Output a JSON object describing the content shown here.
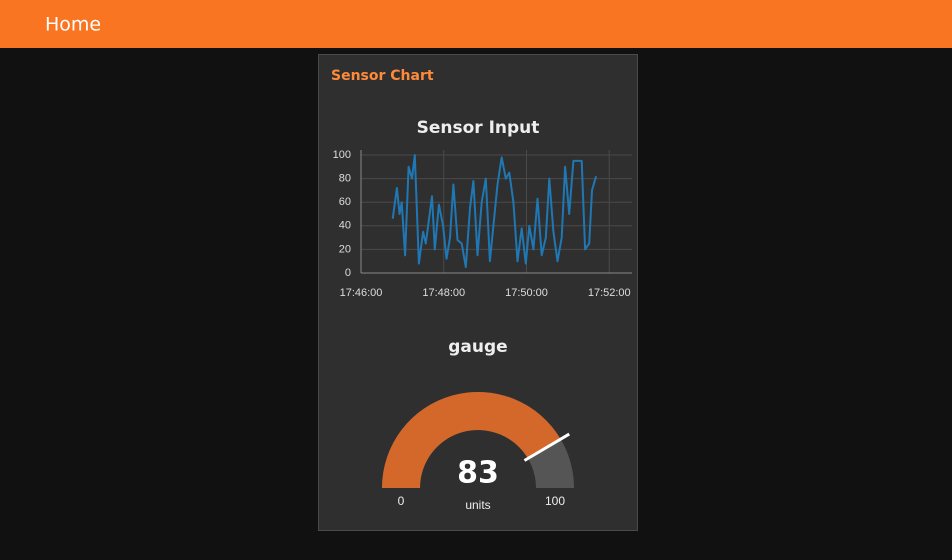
{
  "header": {
    "title": "Home"
  },
  "group": {
    "title": "Sensor Chart"
  },
  "chart_data": [
    {
      "type": "line",
      "title": "Sensor Input",
      "x": [
        "17:46:46",
        "17:46:52",
        "17:46:56",
        "17:46:59",
        "17:47:04",
        "17:47:09",
        "17:47:14",
        "17:47:18",
        "17:47:24",
        "17:47:30",
        "17:47:34",
        "17:47:43",
        "17:47:47",
        "17:47:53",
        "17:47:59",
        "17:48:04",
        "17:48:09",
        "17:48:14",
        "17:48:20",
        "17:48:26",
        "17:48:32",
        "17:48:38",
        "17:48:43",
        "17:48:49",
        "17:48:55",
        "17:49:01",
        "17:49:07",
        "17:49:12",
        "17:49:18",
        "17:49:24",
        "17:49:30",
        "17:49:35",
        "17:49:41",
        "17:49:47",
        "17:49:53",
        "17:49:59",
        "17:50:04",
        "17:50:10",
        "17:50:16",
        "17:50:22",
        "17:50:28",
        "17:50:33",
        "17:50:39",
        "17:50:45",
        "17:50:51",
        "17:50:56",
        "17:51:02",
        "17:51:08",
        "17:51:14",
        "17:51:20",
        "17:51:25",
        "17:51:31",
        "17:51:35",
        "17:51:41"
      ],
      "series": [
        {
          "color": "#1f77b4",
          "values": [
            46,
            72,
            50,
            60,
            15,
            90,
            80,
            100,
            8,
            35,
            25,
            65,
            20,
            58,
            40,
            12,
            30,
            75,
            28,
            25,
            5,
            55,
            78,
            15,
            60,
            80,
            10,
            40,
            75,
            98,
            80,
            85,
            60,
            10,
            38,
            8,
            40,
            20,
            63,
            15,
            30,
            80,
            35,
            10,
            30,
            90,
            50,
            95,
            95,
            95,
            20,
            25,
            70,
            82
          ]
        }
      ],
      "xlim": [
        "17:46:00",
        "17:52:33"
      ],
      "xticks": [
        "17:46:00",
        "17:48:00",
        "17:50:00",
        "17:52:00"
      ],
      "ylim": [
        0,
        100
      ],
      "yticks": [
        0,
        20,
        40,
        60,
        80,
        100
      ],
      "grid": true
    },
    {
      "type": "gauge",
      "title": "gauge",
      "value": 83,
      "min": 0,
      "max": 100,
      "units": "units",
      "color": "#d4682a",
      "track_color": "#555555"
    }
  ]
}
